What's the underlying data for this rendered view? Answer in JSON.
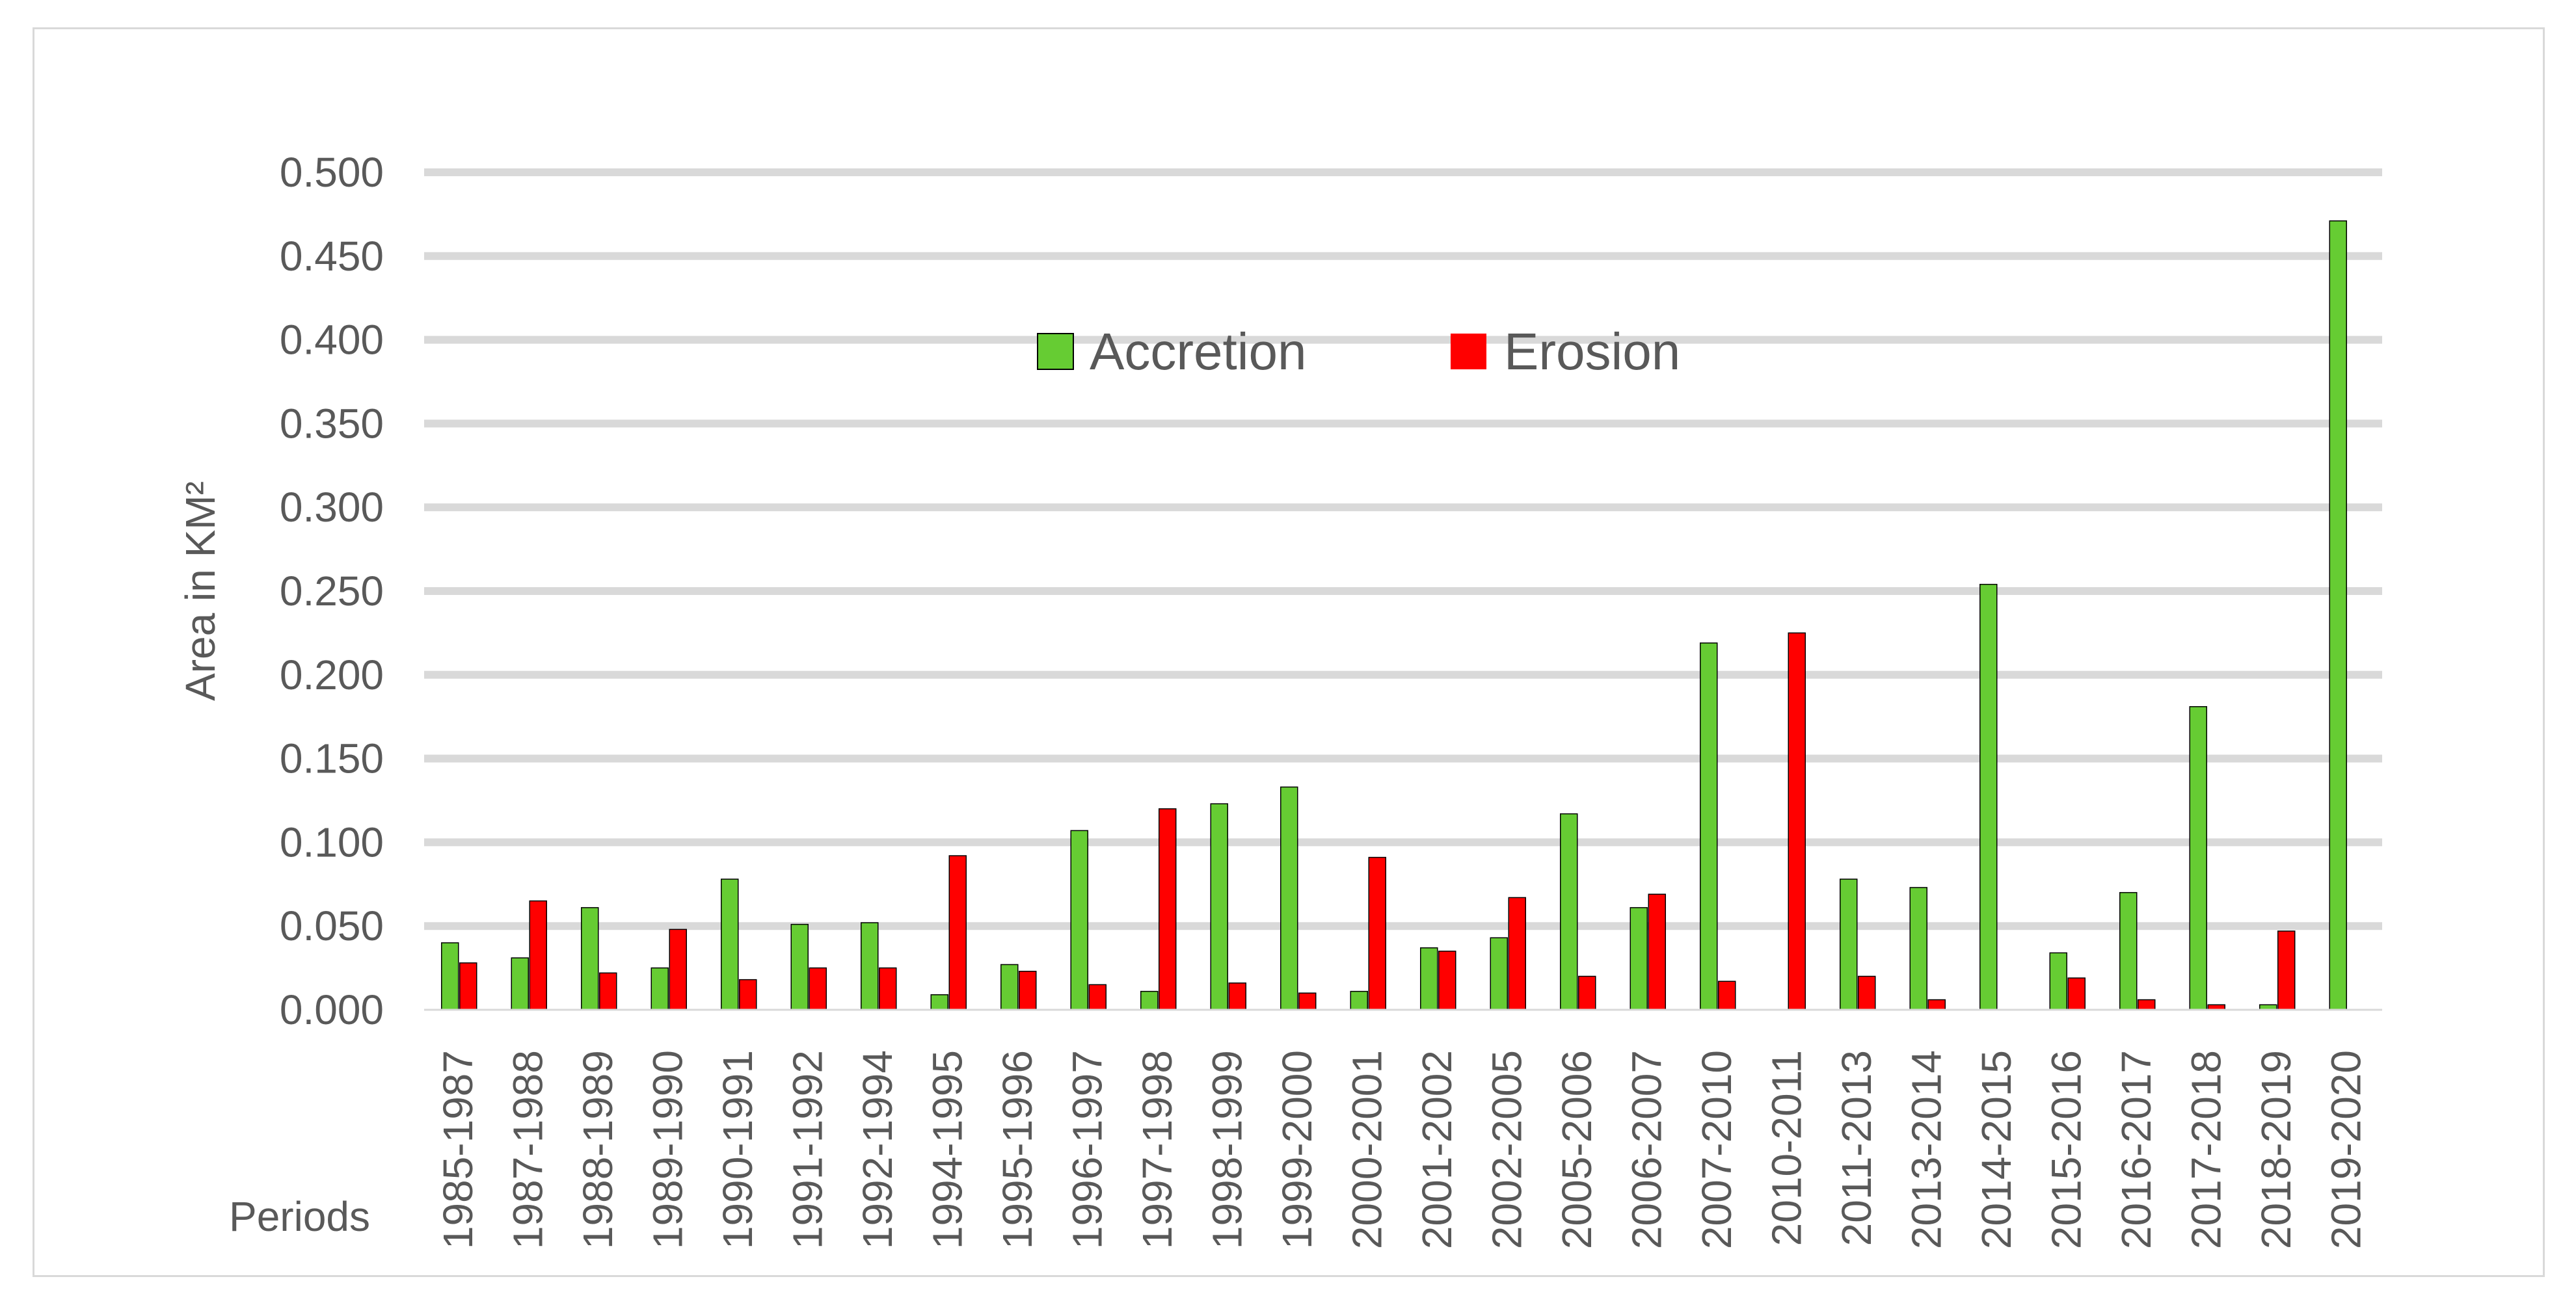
{
  "chart_data": {
    "type": "bar",
    "title": "",
    "xlabel": "Periods",
    "ylabel": "Area in KM²",
    "ylim": [
      0,
      0.5
    ],
    "yticks": [
      "0.000",
      "0.050",
      "0.100",
      "0.150",
      "0.200",
      "0.250",
      "0.300",
      "0.350",
      "0.400",
      "0.450",
      "0.500"
    ],
    "grid": true,
    "legend_position": "top-center",
    "categories": [
      "1985-1987",
      "1987-1988",
      "1988-1989",
      "1989-1990",
      "1990-1991",
      "1991-1992",
      "1992-1994",
      "1994-1995",
      "1995-1996",
      "1996-1997",
      "1997-1998",
      "1998-1999",
      "1999-2000",
      "2000-2001",
      "2001-2002",
      "2002-2005",
      "2005-2006",
      "2006-2007",
      "2007-2010",
      "2010-2011",
      "2011-2013",
      "2013-2014",
      "2014-2015",
      "2015-2016",
      "2016-2017",
      "2017-2018",
      "2018-2019",
      "2019-2020"
    ],
    "series": [
      {
        "name": "Accretion",
        "color": "#66cc33",
        "values": [
          0.04,
          0.031,
          0.061,
          0.025,
          0.078,
          0.051,
          0.052,
          0.009,
          0.027,
          0.107,
          0.011,
          0.123,
          0.133,
          0.011,
          0.037,
          0.043,
          0.117,
          0.061,
          0.219,
          0,
          0.078,
          0.073,
          0.254,
          0.034,
          0.07,
          0.181,
          0.003,
          0.471
        ]
      },
      {
        "name": "Erosion",
        "color": "#ff0000",
        "values": [
          0.028,
          0.065,
          0.022,
          0.048,
          0.018,
          0.025,
          0.025,
          0.092,
          0.023,
          0.015,
          0.12,
          0.016,
          0.01,
          0.091,
          0.035,
          0.067,
          0.02,
          0.069,
          0.017,
          0.225,
          0.02,
          0.006,
          0,
          0.019,
          0.006,
          0.003,
          0.047,
          0
        ]
      }
    ]
  }
}
